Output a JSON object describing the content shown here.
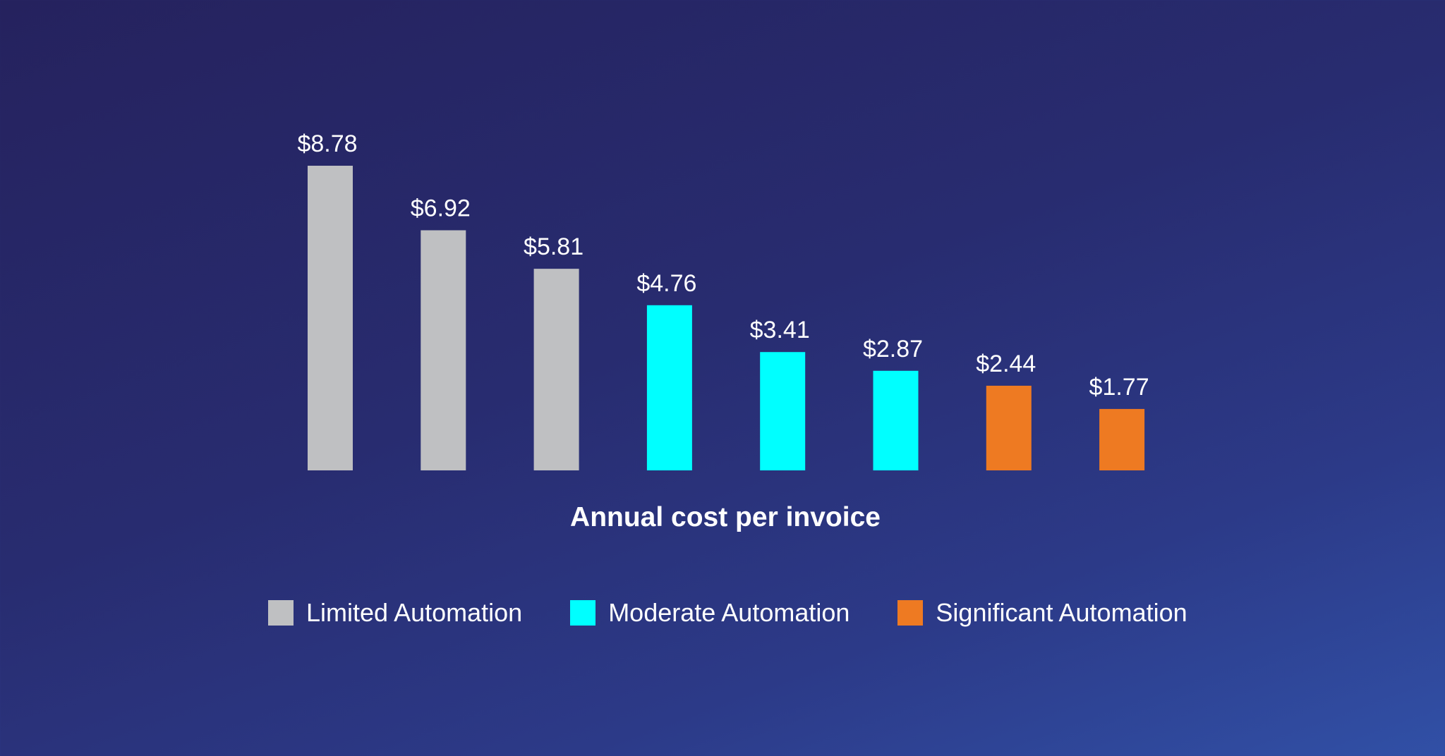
{
  "chart_data": {
    "type": "bar",
    "title": "",
    "xlabel": "Annual cost per invoice",
    "ylabel": "",
    "ylim": [
      0,
      8.78
    ],
    "grid": false,
    "legend_placement": "bottom",
    "values": [
      8.78,
      6.92,
      5.81,
      4.76,
      3.41,
      2.87,
      2.44,
      1.77
    ],
    "labels": [
      "$8.78",
      "$6.92",
      "$5.81",
      "$4.76",
      "$3.41",
      "$2.87",
      "$2.44",
      "$1.77"
    ],
    "groups": [
      0,
      0,
      0,
      1,
      1,
      1,
      2,
      2
    ],
    "series": [
      {
        "name": "Limited Automation",
        "color": "#bfc0c2"
      },
      {
        "name": "Moderate Automation",
        "color": "#00ffff"
      },
      {
        "name": "Significant Automation",
        "color": "#ee7a22"
      }
    ]
  }
}
